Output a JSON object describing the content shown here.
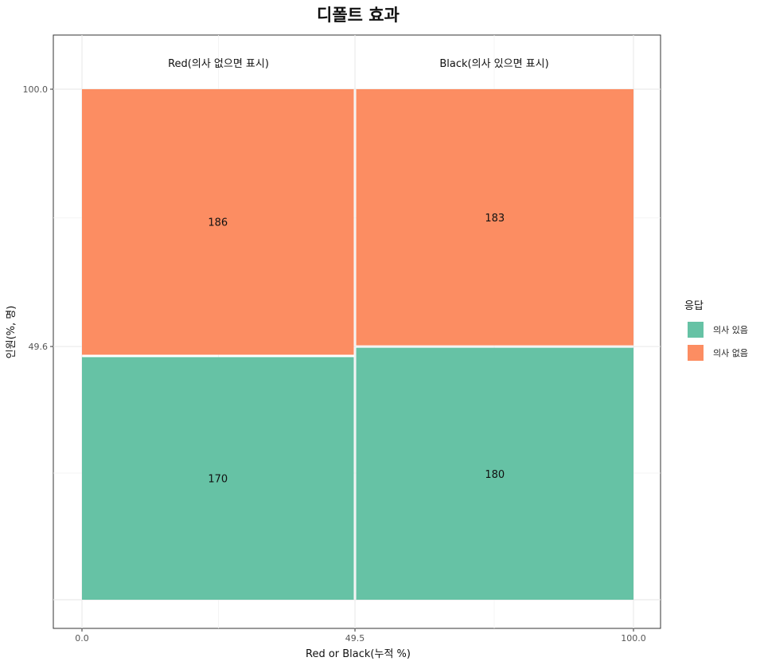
{
  "chart_data": {
    "type": "mosaic",
    "title": "디폴트 효과",
    "xlabel": "Red or Black(누적 %)",
    "ylabel": "인원(%, 명)",
    "x_ticks": [
      "0.0",
      "49.5",
      "100.0"
    ],
    "y_ticks": [
      "49.6",
      "100.0"
    ],
    "xlim": [
      0,
      100
    ],
    "ylim": [
      0,
      100
    ],
    "grid": true,
    "legend": {
      "title": "응답",
      "position": "right",
      "items": [
        {
          "label": "의사 있음",
          "color": "#66c2a5"
        },
        {
          "label": "의사 없음",
          "color": "#fc8d62"
        }
      ]
    },
    "columns": [
      {
        "label": "Red(의사 없으면 표시)",
        "width_pct": 49.5,
        "segments": [
          {
            "response": "의사 있음",
            "count": 170,
            "pct": 47.75
          },
          {
            "response": "의사 없음",
            "count": 186,
            "pct": 52.25
          }
        ]
      },
      {
        "label": "Black(의사 있으면 표시)",
        "width_pct": 50.5,
        "segments": [
          {
            "response": "의사 있음",
            "count": 180,
            "pct": 49.59
          },
          {
            "response": "의사 없음",
            "count": 183,
            "pct": 50.41
          }
        ]
      }
    ]
  }
}
